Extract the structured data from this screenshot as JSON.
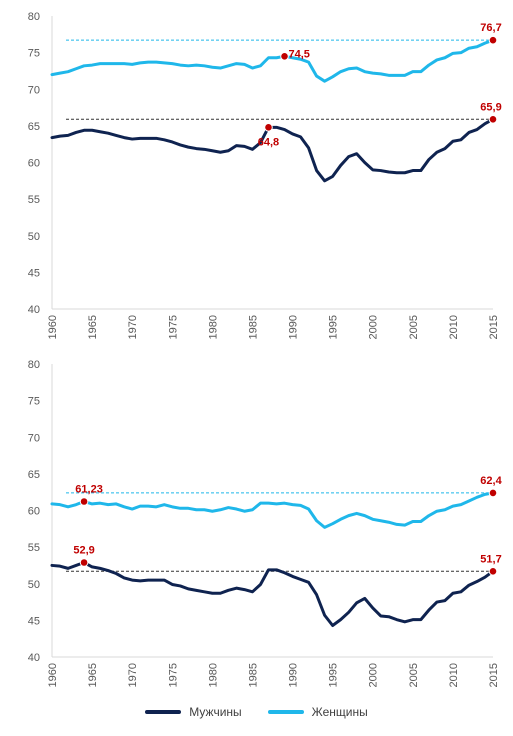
{
  "colors": {
    "men": "#0f2350",
    "women": "#1fb7ea",
    "annotation": "#c00000",
    "axis": "#d9d9d9"
  },
  "legend": {
    "men_label": "Мужчины",
    "women_label": "Женщины",
    "placement": "bottom-center"
  },
  "chart_data": [
    {
      "type": "line",
      "title": "",
      "ylim": [
        40,
        80
      ],
      "yticks": [
        40,
        45,
        50,
        55,
        60,
        65,
        70,
        75,
        80
      ],
      "xlim": [
        1960,
        2015
      ],
      "xticks": [
        1960,
        1965,
        1970,
        1975,
        1980,
        1985,
        1990,
        1995,
        2000,
        2005,
        2010,
        2015
      ],
      "grid": false,
      "series": [
        {
          "name": "Мужчины",
          "x": [
            1960,
            1961,
            1962,
            1963,
            1964,
            1965,
            1966,
            1967,
            1968,
            1969,
            1970,
            1971,
            1972,
            1973,
            1974,
            1975,
            1976,
            1977,
            1978,
            1979,
            1980,
            1981,
            1982,
            1983,
            1984,
            1985,
            1986,
            1987,
            1988,
            1989,
            1990,
            1991,
            1992,
            1993,
            1994,
            1995,
            1996,
            1997,
            1998,
            1999,
            2000,
            2001,
            2002,
            2003,
            2004,
            2005,
            2006,
            2007,
            2008,
            2009,
            2010,
            2011,
            2012,
            2013,
            2014,
            2015
          ],
          "values": [
            63.4,
            63.6,
            63.7,
            64.1,
            64.4,
            64.4,
            64.2,
            64.0,
            63.7,
            63.4,
            63.2,
            63.3,
            63.3,
            63.3,
            63.1,
            62.8,
            62.4,
            62.1,
            61.9,
            61.8,
            61.6,
            61.4,
            61.6,
            62.3,
            62.2,
            61.8,
            62.7,
            64.8,
            64.8,
            64.5,
            63.9,
            63.5,
            62.0,
            58.9,
            57.5,
            58.1,
            59.6,
            60.8,
            61.2,
            60.0,
            59.0,
            58.9,
            58.7,
            58.6,
            58.6,
            58.9,
            58.9,
            60.4,
            61.4,
            61.9,
            62.9,
            63.1,
            64.1,
            64.5,
            65.3,
            65.9
          ]
        },
        {
          "name": "Женщины",
          "x": [
            1960,
            1961,
            1962,
            1963,
            1964,
            1965,
            1966,
            1967,
            1968,
            1969,
            1970,
            1971,
            1972,
            1973,
            1974,
            1975,
            1976,
            1977,
            1978,
            1979,
            1980,
            1981,
            1982,
            1983,
            1984,
            1985,
            1986,
            1987,
            1988,
            1989,
            1990,
            1991,
            1992,
            1993,
            1994,
            1995,
            1996,
            1997,
            1998,
            1999,
            2000,
            2001,
            2002,
            2003,
            2004,
            2005,
            2006,
            2007,
            2008,
            2009,
            2010,
            2011,
            2012,
            2013,
            2014,
            2015
          ],
          "values": [
            72.0,
            72.2,
            72.4,
            72.8,
            73.2,
            73.3,
            73.5,
            73.5,
            73.5,
            73.5,
            73.4,
            73.6,
            73.7,
            73.7,
            73.6,
            73.5,
            73.3,
            73.2,
            73.3,
            73.2,
            73.0,
            72.9,
            73.2,
            73.5,
            73.4,
            72.9,
            73.2,
            74.3,
            74.3,
            74.5,
            74.3,
            74.1,
            73.7,
            71.8,
            71.1,
            71.7,
            72.4,
            72.8,
            72.9,
            72.4,
            72.2,
            72.1,
            71.9,
            71.9,
            71.9,
            72.4,
            72.4,
            73.3,
            74.0,
            74.3,
            74.9,
            75.0,
            75.6,
            75.8,
            76.3,
            76.7
          ]
        }
      ],
      "reference_lines": [
        {
          "value": 76.7,
          "series": "Женщины"
        },
        {
          "value": 65.9,
          "series": "Мужчины"
        }
      ],
      "annotations": [
        {
          "x": 2015,
          "y": 76.7,
          "label": "76,7",
          "series": "Женщины"
        },
        {
          "x": 1989,
          "y": 74.5,
          "label": "74,5",
          "series": "Женщины"
        },
        {
          "x": 2015,
          "y": 65.9,
          "label": "65,9",
          "series": "Мужчины"
        },
        {
          "x": 1987,
          "y": 64.8,
          "label": "64,8",
          "series": "Мужчины"
        }
      ]
    },
    {
      "type": "line",
      "title": "",
      "ylim": [
        40,
        80
      ],
      "yticks": [
        40,
        45,
        50,
        55,
        60,
        65,
        70,
        75,
        80
      ],
      "xlim": [
        1960,
        2015
      ],
      "xticks": [
        1960,
        1965,
        1970,
        1975,
        1980,
        1985,
        1990,
        1995,
        2000,
        2005,
        2010,
        2015
      ],
      "grid": false,
      "series": [
        {
          "name": "Мужчины",
          "x": [
            1960,
            1961,
            1962,
            1963,
            1964,
            1965,
            1966,
            1967,
            1968,
            1969,
            1970,
            1971,
            1972,
            1973,
            1974,
            1975,
            1976,
            1977,
            1978,
            1979,
            1980,
            1981,
            1982,
            1983,
            1984,
            1985,
            1986,
            1987,
            1988,
            1989,
            1990,
            1991,
            1992,
            1993,
            1994,
            1995,
            1996,
            1997,
            1998,
            1999,
            2000,
            2001,
            2002,
            2003,
            2004,
            2005,
            2006,
            2007,
            2008,
            2009,
            2010,
            2011,
            2012,
            2013,
            2014,
            2015
          ],
          "values": [
            52.5,
            52.4,
            52.1,
            52.5,
            52.9,
            52.3,
            52.1,
            51.8,
            51.4,
            50.8,
            50.5,
            50.4,
            50.5,
            50.5,
            50.5,
            49.9,
            49.7,
            49.3,
            49.1,
            48.9,
            48.7,
            48.7,
            49.1,
            49.4,
            49.2,
            48.9,
            49.9,
            51.9,
            51.9,
            51.5,
            51.0,
            50.6,
            50.2,
            48.5,
            45.7,
            44.3,
            45.1,
            46.1,
            47.4,
            48.0,
            46.7,
            45.6,
            45.5,
            45.1,
            44.8,
            45.1,
            45.1,
            46.4,
            47.5,
            47.7,
            48.7,
            48.9,
            49.8,
            50.3,
            50.9,
            51.7
          ]
        },
        {
          "name": "Женщины",
          "x": [
            1960,
            1961,
            1962,
            1963,
            1964,
            1965,
            1966,
            1967,
            1968,
            1969,
            1970,
            1971,
            1972,
            1973,
            1974,
            1975,
            1976,
            1977,
            1978,
            1979,
            1980,
            1981,
            1982,
            1983,
            1984,
            1985,
            1986,
            1987,
            1988,
            1989,
            1990,
            1991,
            1992,
            1993,
            1994,
            1995,
            1996,
            1997,
            1998,
            1999,
            2000,
            2001,
            2002,
            2003,
            2004,
            2005,
            2006,
            2007,
            2008,
            2009,
            2010,
            2011,
            2012,
            2013,
            2014,
            2015
          ],
          "values": [
            60.9,
            60.8,
            60.5,
            60.8,
            61.23,
            60.9,
            61.0,
            60.8,
            60.9,
            60.5,
            60.2,
            60.6,
            60.6,
            60.5,
            60.8,
            60.5,
            60.3,
            60.3,
            60.1,
            60.1,
            59.9,
            60.1,
            60.4,
            60.2,
            59.9,
            60.1,
            61.0,
            61.0,
            60.9,
            61.0,
            60.8,
            60.7,
            60.2,
            58.6,
            57.7,
            58.2,
            58.8,
            59.3,
            59.6,
            59.3,
            58.8,
            58.6,
            58.4,
            58.1,
            58.0,
            58.5,
            58.5,
            59.3,
            59.9,
            60.1,
            60.6,
            60.8,
            61.3,
            61.8,
            62.2,
            62.4
          ]
        }
      ],
      "reference_lines": [
        {
          "value": 62.4,
          "series": "Женщины"
        },
        {
          "value": 51.7,
          "series": "Мужчины"
        }
      ],
      "annotations": [
        {
          "x": 1964,
          "y": 61.23,
          "label": "61,23",
          "series": "Женщины"
        },
        {
          "x": 2015,
          "y": 62.4,
          "label": "62,4",
          "series": "Женщины"
        },
        {
          "x": 1964,
          "y": 52.9,
          "label": "52,9",
          "series": "Мужчины"
        },
        {
          "x": 2015,
          "y": 51.7,
          "label": "51,7",
          "series": "Мужчины"
        }
      ]
    }
  ]
}
